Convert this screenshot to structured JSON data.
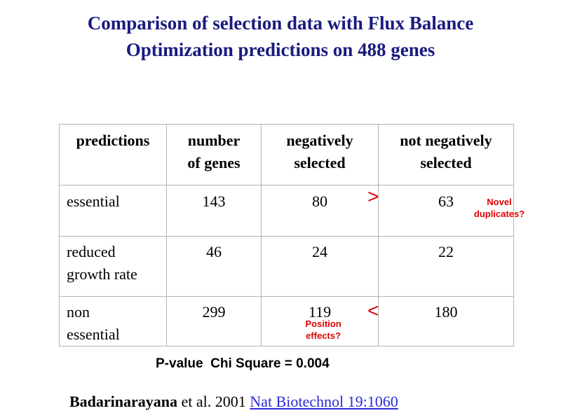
{
  "title": {
    "line1": "Comparison of selection data with Flux Balance",
    "line2": "Optimization predictions on 488 genes"
  },
  "table": {
    "headers": [
      [
        "predictions"
      ],
      [
        "number",
        "of genes"
      ],
      [
        "negatively",
        "selected"
      ],
      [
        "not negatively",
        "selected"
      ]
    ],
    "rows": [
      {
        "label": [
          "essential"
        ],
        "number": "143",
        "negatively": "80",
        "not_negatively": "63"
      },
      {
        "label": [
          "reduced",
          "growth rate"
        ],
        "number": "46",
        "negatively": "24",
        "not_negatively": "22"
      },
      {
        "label": [
          "non",
          "essential"
        ],
        "number": "299",
        "negatively": "119",
        "not_negatively": "180"
      }
    ]
  },
  "comparisons": {
    "row1": ">",
    "row3": "<"
  },
  "notes": {
    "novel": [
      "Novel",
      "duplicates?"
    ],
    "position": [
      "Position",
      "effects?"
    ]
  },
  "pvalue": "P-value  Chi Square = 0.004",
  "citation": {
    "author": "Badarinarayana",
    "rest": " et al. 2001 ",
    "link": "Nat Biotechnol 19:1060"
  },
  "colors": {
    "title": "#1a1a80",
    "annotation": "#e00000",
    "link": "#2b2bd8",
    "table_border": "#b4b4b4"
  }
}
